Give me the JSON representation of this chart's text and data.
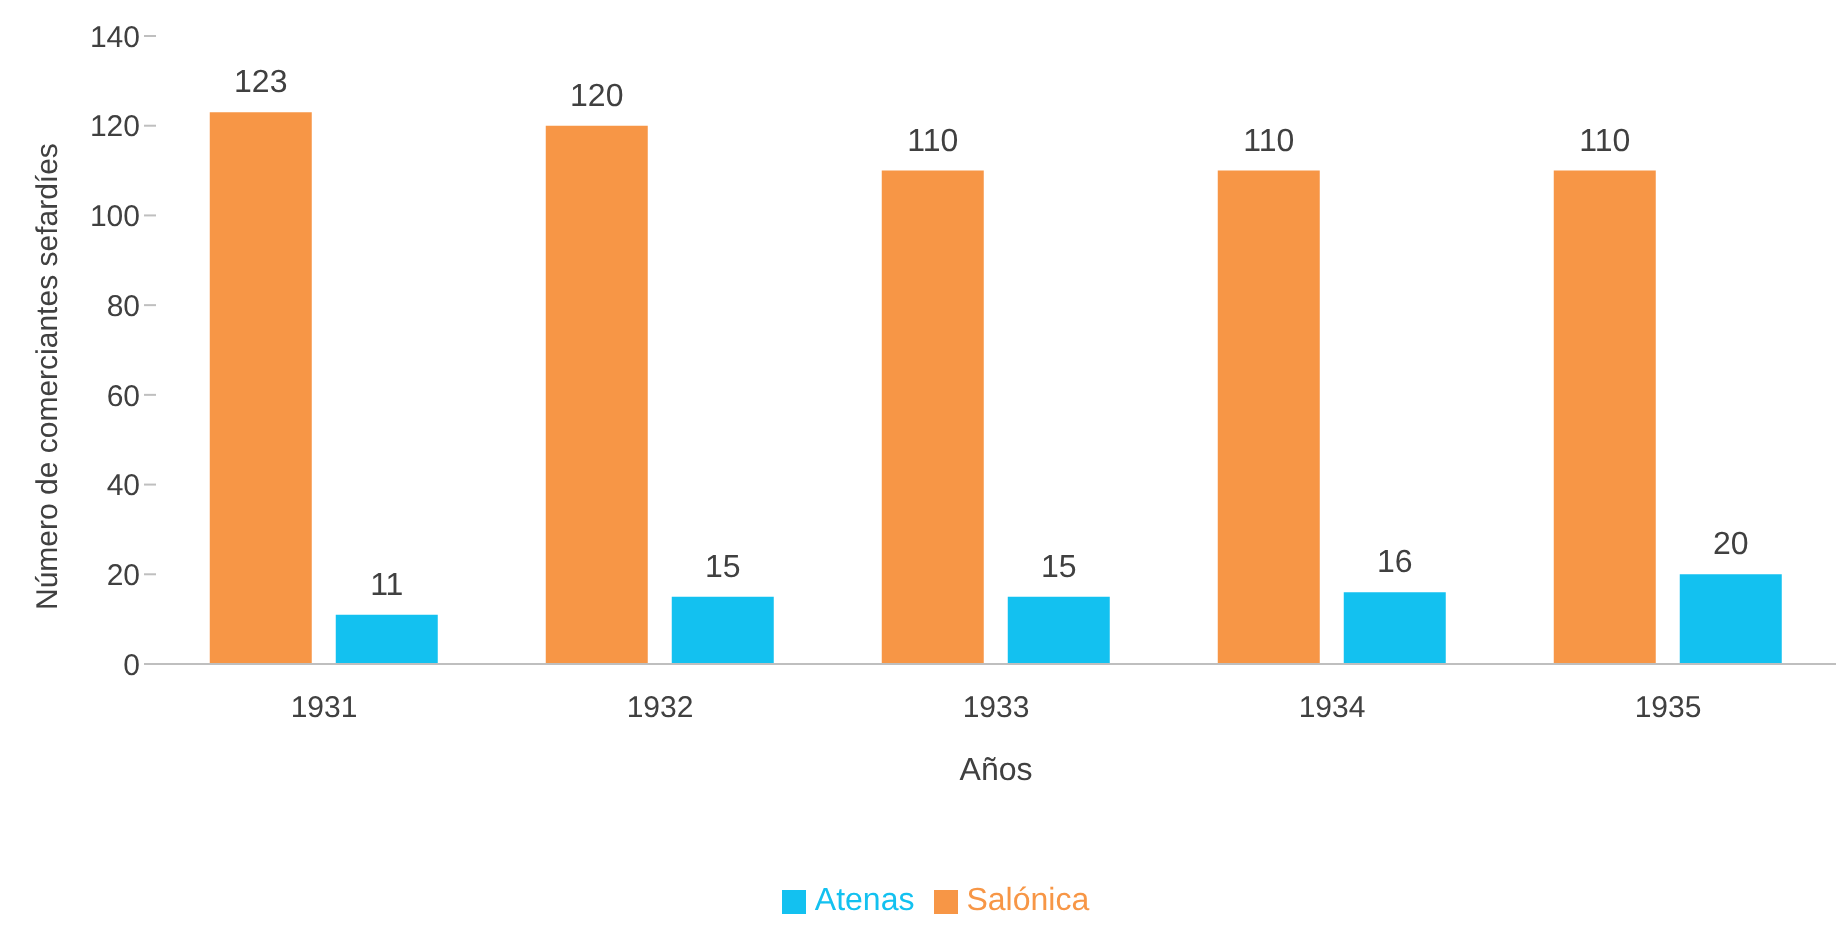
{
  "chart_data": {
    "type": "bar",
    "xlabel": "Años",
    "ylabel": "Número de comerciantes sefardíes",
    "categories": [
      "1931",
      "1932",
      "1933",
      "1934",
      "1935"
    ],
    "series": [
      {
        "name": "Salónica",
        "color": "#f79646",
        "values": [
          123,
          120,
          110,
          110,
          110
        ]
      },
      {
        "name": "Atenas",
        "color": "#13c1f0",
        "values": [
          11,
          15,
          15,
          16,
          20
        ]
      }
    ],
    "ylim": [
      0,
      140
    ],
    "yticks": [
      0,
      20,
      40,
      60,
      80,
      100,
      120,
      140
    ],
    "grid": false,
    "legend": "bottom",
    "data_labels": true
  }
}
